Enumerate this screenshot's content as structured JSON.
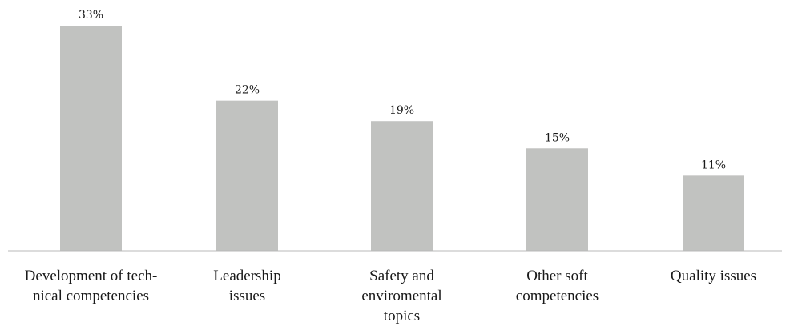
{
  "chart_data": {
    "type": "bar",
    "categories": [
      [
        "Development of tech-",
        "nical competencies"
      ],
      [
        "Leadership",
        "issues"
      ],
      [
        "Safety and",
        "enviromental",
        "topics"
      ],
      [
        "Other soft",
        "competencies"
      ],
      [
        "Quality issues"
      ]
    ],
    "values": [
      33,
      22,
      19,
      15,
      11
    ],
    "value_labels": [
      "33%",
      "22%",
      "19%",
      "15%",
      "11%"
    ],
    "unit": "%",
    "ylim": [
      0,
      33
    ],
    "grid": false,
    "legend": "none",
    "colors": {
      "bar": "#c1c2c0",
      "axis": "#b8b8b8",
      "text": "#1a1a1a"
    }
  }
}
